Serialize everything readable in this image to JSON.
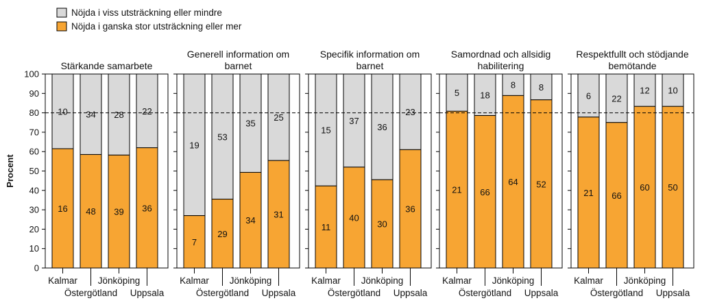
{
  "chart_data": {
    "type": "bar",
    "stacked": true,
    "percent": true,
    "ylabel": "Procent",
    "ylim": [
      0,
      100
    ],
    "yticks": [
      0,
      10,
      20,
      30,
      40,
      50,
      60,
      70,
      80,
      90,
      100
    ],
    "reference_line": 80,
    "categories": [
      "Kalmar",
      "Östergötland",
      "Jönköping",
      "Uppsala"
    ],
    "colors": {
      "lower": "#F7A533",
      "upper": "#D9D9D9"
    },
    "legend": [
      {
        "label": "Nöjda i viss utsträckning eller mindre",
        "color": "#D9D9D9"
      },
      {
        "label": "Nöjda i ganska stor utsträckning eller mer",
        "color": "#F7A533"
      }
    ],
    "panels": [
      {
        "title": [
          "Stärkande samarbete"
        ],
        "lower_percent": [
          61.5,
          58.5,
          58.2,
          62.0
        ],
        "lower_counts": [
          "16",
          "48",
          "39",
          "36"
        ],
        "upper_counts": [
          "10",
          "34",
          "28",
          "22"
        ]
      },
      {
        "title": [
          "Generell information om",
          "barnet"
        ],
        "lower_percent": [
          27.0,
          35.5,
          49.3,
          55.4
        ],
        "lower_counts": [
          "7",
          "29",
          "34",
          "31"
        ],
        "upper_counts": [
          "19",
          "53",
          "35",
          "25"
        ]
      },
      {
        "title": [
          "Specifik information om",
          "barnet"
        ],
        "lower_percent": [
          42.3,
          52.0,
          45.5,
          61.0
        ],
        "lower_counts": [
          "11",
          "40",
          "30",
          "36"
        ],
        "upper_counts": [
          "15",
          "37",
          "36",
          "23"
        ]
      },
      {
        "title": [
          "Samordnad och allsidig",
          "habilitering"
        ],
        "lower_percent": [
          80.8,
          78.6,
          88.9,
          86.7
        ],
        "lower_counts": [
          "21",
          "66",
          "64",
          "52"
        ],
        "upper_counts": [
          "5",
          "18",
          "8",
          "8"
        ]
      },
      {
        "title": [
          "Respektfullt och stödjande",
          "bemötande"
        ],
        "lower_percent": [
          77.8,
          75.0,
          83.3,
          83.3
        ],
        "lower_counts": [
          "21",
          "66",
          "60",
          "50"
        ],
        "upper_counts": [
          "6",
          "22",
          "12",
          "10"
        ]
      }
    ]
  }
}
